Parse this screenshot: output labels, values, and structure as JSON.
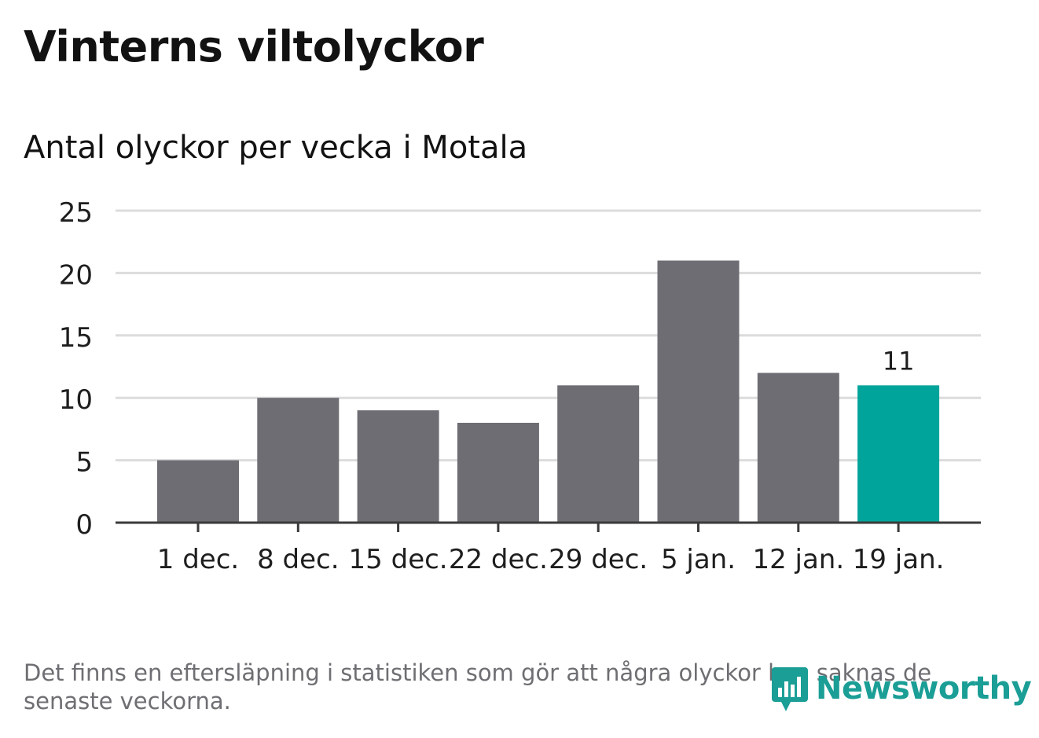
{
  "header": {
    "title": "Vinterns viltolyckor",
    "subtitle": "Antal olyckor per vecka i Motala"
  },
  "chart_data": {
    "type": "bar",
    "title": "Vinterns viltolyckor",
    "subtitle": "Antal olyckor per vecka i Motala",
    "xlabel": "",
    "ylabel": "",
    "categories": [
      "1 dec.",
      "8 dec.",
      "15 dec.",
      "22 dec.",
      "29 dec.",
      "5 jan.",
      "12 jan.",
      "19 jan."
    ],
    "values": [
      5,
      10,
      9,
      8,
      11,
      21,
      12,
      11
    ],
    "ylim": [
      0,
      25
    ],
    "yticks": [
      0,
      5,
      10,
      15,
      20,
      25
    ],
    "grid": true,
    "highlight_index": 7,
    "highlight_label": "11",
    "colors": {
      "bar": "#6e6d73",
      "highlight": "#00a49a",
      "grid": "#dcdcdc",
      "axis": "#3a3a3a",
      "text": "#1e1e1e"
    }
  },
  "footer": {
    "note": "Det finns en eftersläpning i statistiken som gör att några olyckor kan saknas de senaste veckorna.",
    "brand": "Newsworthy",
    "brand_icon": "newsworthy-logo-icon"
  }
}
